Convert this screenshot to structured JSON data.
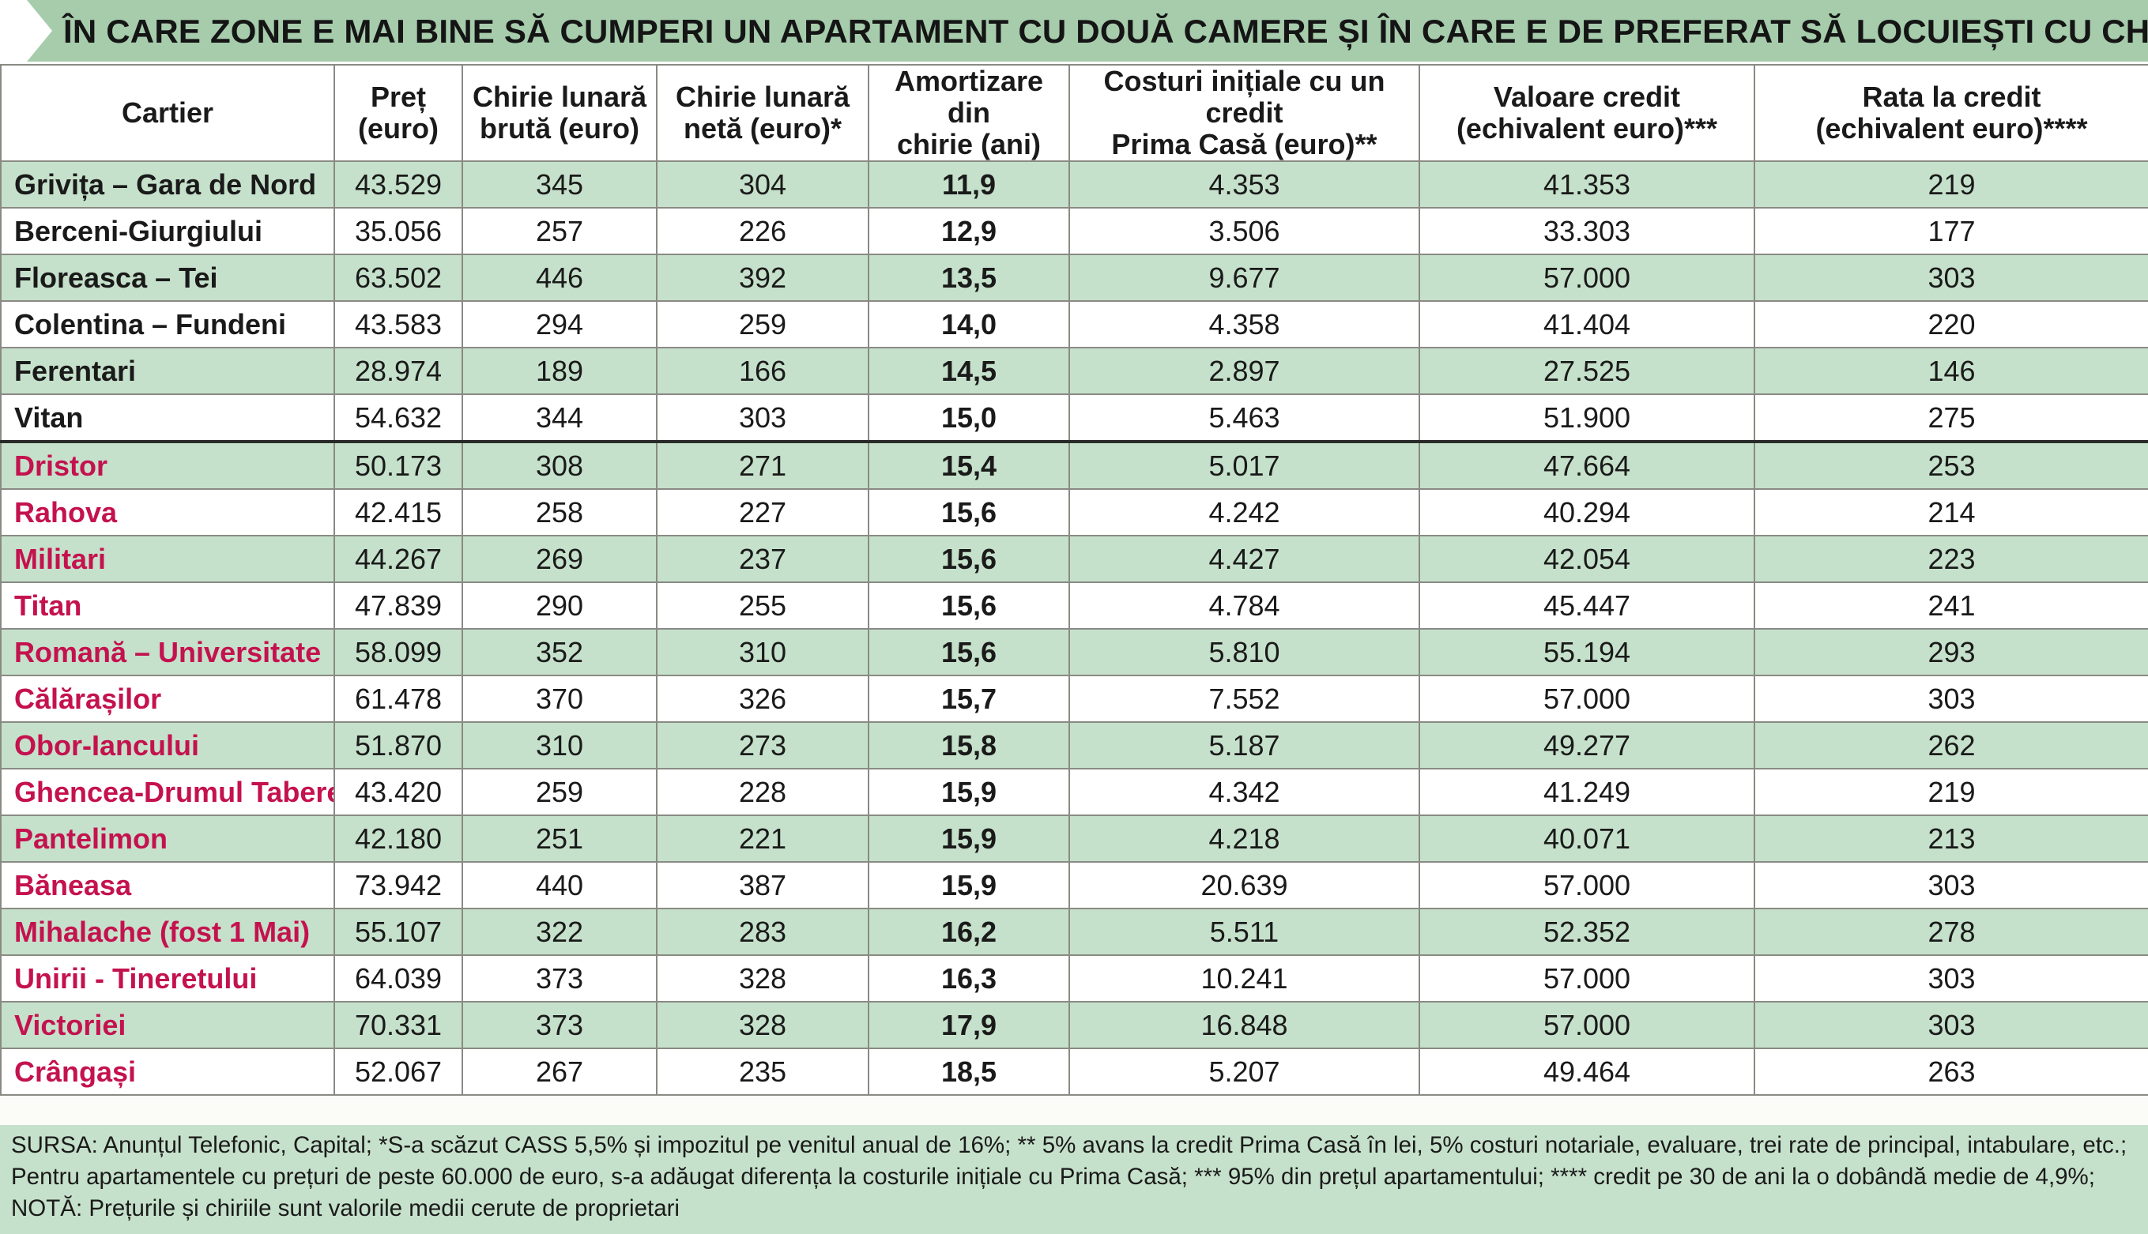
{
  "title": "ÎN CARE ZONE E MAI BINE SĂ CUMPERI UN APARTAMENT CU DOUĂ CAMERE ȘI ÎN CARE E DE PREFERAT SĂ LOCUIEȘTI CU CHIRIE",
  "colors": {
    "green_band": "#a6ccac",
    "row_green": "#c6e1cb",
    "red_name": "#c4124f"
  },
  "icons": {
    "title_marker": "right-arrow-icon"
  },
  "headers": {
    "cartier": "Cartier",
    "pret": [
      "Preț",
      "(euro)"
    ],
    "chirie_bruta": [
      "Chirie lunară",
      "brută (euro)"
    ],
    "chirie_neta": [
      "Chirie lunară",
      "netă (euro)*"
    ],
    "amortizare": [
      "Amortizare din",
      "chirie (ani)"
    ],
    "costuri": [
      "Costuri inițiale cu un credit",
      "Prima Casă (euro)**"
    ],
    "valoare": [
      "Valoare credit",
      "(echivalent euro)***"
    ],
    "rata": [
      "Rata la credit",
      "(echivalent euro)****"
    ]
  },
  "rows": [
    {
      "cartier": "Grivița – Gara de Nord",
      "pret": "43.529",
      "bruta": "345",
      "neta": "304",
      "amort": "11,9",
      "costuri": "4.353",
      "valoare": "41.353",
      "rata": "219"
    },
    {
      "cartier": "Berceni-Giurgiului",
      "pret": "35.056",
      "bruta": "257",
      "neta": "226",
      "amort": "12,9",
      "costuri": "3.506",
      "valoare": "33.303",
      "rata": "177"
    },
    {
      "cartier": "Floreasca – Tei",
      "pret": "63.502",
      "bruta": "446",
      "neta": "392",
      "amort": "13,5",
      "costuri": "9.677",
      "valoare": "57.000",
      "rata": "303"
    },
    {
      "cartier": "Colentina – Fundeni",
      "pret": "43.583",
      "bruta": "294",
      "neta": "259",
      "amort": "14,0",
      "costuri": "4.358",
      "valoare": "41.404",
      "rata": "220"
    },
    {
      "cartier": "Ferentari",
      "pret": "28.974",
      "bruta": "189",
      "neta": "166",
      "amort": "14,5",
      "costuri": "2.897",
      "valoare": "27.525",
      "rata": "146"
    },
    {
      "cartier": "Vitan",
      "pret": "54.632",
      "bruta": "344",
      "neta": "303",
      "amort": "15,0",
      "costuri": "5.463",
      "valoare": "51.900",
      "rata": "275"
    },
    {
      "cartier": "Dristor",
      "pret": "50.173",
      "bruta": "308",
      "neta": "271",
      "amort": "15,4",
      "costuri": "5.017",
      "valoare": "47.664",
      "rata": "253"
    },
    {
      "cartier": "Rahova",
      "pret": "42.415",
      "bruta": "258",
      "neta": "227",
      "amort": "15,6",
      "costuri": "4.242",
      "valoare": "40.294",
      "rata": "214"
    },
    {
      "cartier": "Militari",
      "pret": "44.267",
      "bruta": "269",
      "neta": "237",
      "amort": "15,6",
      "costuri": "4.427",
      "valoare": "42.054",
      "rata": "223"
    },
    {
      "cartier": "Titan",
      "pret": "47.839",
      "bruta": "290",
      "neta": "255",
      "amort": "15,6",
      "costuri": "4.784",
      "valoare": "45.447",
      "rata": "241"
    },
    {
      "cartier": "Romană – Universitate",
      "pret": "58.099",
      "bruta": "352",
      "neta": "310",
      "amort": "15,6",
      "costuri": "5.810",
      "valoare": "55.194",
      "rata": "293"
    },
    {
      "cartier": "Călărașilor",
      "pret": "61.478",
      "bruta": "370",
      "neta": "326",
      "amort": "15,7",
      "costuri": "7.552",
      "valoare": "57.000",
      "rata": "303"
    },
    {
      "cartier": "Obor-Iancului",
      "pret": "51.870",
      "bruta": "310",
      "neta": "273",
      "amort": "15,8",
      "costuri": "5.187",
      "valoare": "49.277",
      "rata": "262"
    },
    {
      "cartier": "Ghencea-Drumul Taberei",
      "pret": "43.420",
      "bruta": "259",
      "neta": "228",
      "amort": "15,9",
      "costuri": "4.342",
      "valoare": "41.249",
      "rata": "219"
    },
    {
      "cartier": "Pantelimon",
      "pret": "42.180",
      "bruta": "251",
      "neta": "221",
      "amort": "15,9",
      "costuri": "4.218",
      "valoare": "40.071",
      "rata": "213"
    },
    {
      "cartier": "Băneasa",
      "pret": "73.942",
      "bruta": "440",
      "neta": "387",
      "amort": "15,9",
      "costuri": "20.639",
      "valoare": "57.000",
      "rata": "303"
    },
    {
      "cartier": "Mihalache (fost 1 Mai)",
      "pret": "55.107",
      "bruta": "322",
      "neta": "283",
      "amort": "16,2",
      "costuri": "5.511",
      "valoare": "52.352",
      "rata": "278"
    },
    {
      "cartier": "Unirii - Tineretului",
      "pret": "64.039",
      "bruta": "373",
      "neta": "328",
      "amort": "16,3",
      "costuri": "10.241",
      "valoare": "57.000",
      "rata": "303"
    },
    {
      "cartier": "Victoriei",
      "pret": "70.331",
      "bruta": "373",
      "neta": "328",
      "amort": "17,9",
      "costuri": "16.848",
      "valoare": "57.000",
      "rata": "303"
    },
    {
      "cartier": "Crângași",
      "pret": "52.067",
      "bruta": "267",
      "neta": "235",
      "amort": "18,5",
      "costuri": "5.207",
      "valoare": "49.464",
      "rata": "263"
    }
  ],
  "footer": "SURSA: Anunțul Telefonic, Capital; *S-a scăzut CASS 5,5% și impozitul pe venitul anual de 16%; ** 5% avans la credit Prima Casă în lei, 5% costuri notariale, evaluare, trei rate de principal, intabulare, etc.; Pentru apartamentele cu prețuri de peste 60.000 de euro, s-a adăugat diferența la costurile inițiale cu Prima Casă; *** 95% din prețul apartamentului; **** credit pe 30 de ani la o dobândă medie de 4,9%; NOTĂ: Prețurile și chiriile sunt valorile medii cerute de proprietari"
}
